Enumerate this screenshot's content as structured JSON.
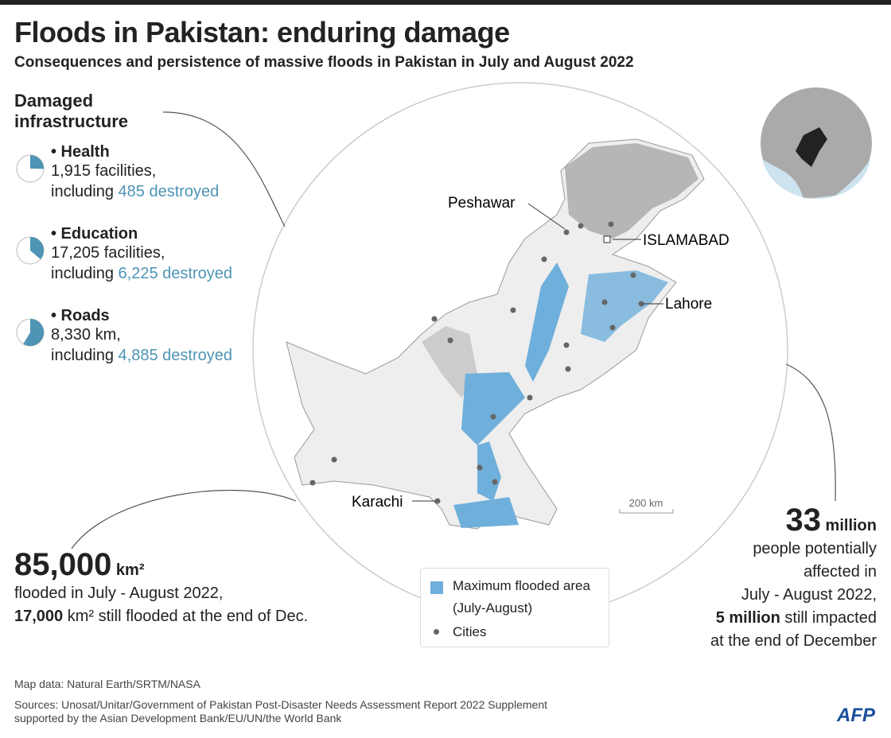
{
  "header": {
    "title": "Floods in Pakistan: enduring damage",
    "subtitle": "Consequences and persistence of massive floods in Pakistan in July and August 2022"
  },
  "infrastructure": {
    "title": "Damaged infrastructure",
    "items": [
      {
        "name": "• Health",
        "total": {
          "value": 1915,
          "label": "1,915"
        },
        "total_unit": "facilities,",
        "prefix": "including",
        "destroyed": {
          "value": 485,
          "label": "485"
        },
        "destroyed_unit": "destroyed"
      },
      {
        "name": "• Education",
        "total": {
          "value": 17205,
          "label": "17,205"
        },
        "total_unit": "facilities,",
        "prefix": "including",
        "destroyed": {
          "value": 6225,
          "label": "6,225"
        },
        "destroyed_unit": "destroyed"
      },
      {
        "name": "• Roads",
        "total": {
          "value": 8330,
          "label": "8,330"
        },
        "total_unit": "km,",
        "prefix": "including",
        "destroyed": {
          "value": 4885,
          "label": "4,885"
        },
        "destroyed_unit": "destroyed"
      }
    ]
  },
  "map": {
    "cities": [
      "Peshawar",
      "ISLAMABAD",
      "Lahore",
      "Karachi"
    ],
    "scale": "200 km",
    "legend": {
      "flooded": "Maximum flooded area",
      "flooded_period": "(July-August)",
      "cities": "Cities"
    }
  },
  "flooded_area": {
    "value": "85,000",
    "unit": "km²",
    "line1": "flooded in July - August 2022,",
    "still_value": "17,000",
    "still_unit": "km²",
    "still_text": "still flooded at the end of Dec."
  },
  "people": {
    "value": "33",
    "unit": "million",
    "line1": "people potentially",
    "line2": "affected in",
    "line3": "July - August 2022,",
    "still_value": "5 million",
    "still_text": "still impacted",
    "line5": "at the end of December"
  },
  "footer": {
    "map_data": "Map data: Natural Earth/SRTM/NASA",
    "sources1": "Sources: Unosat/Unitar/Government of Pakistan Post-Disaster Needs Assessment Report 2022 Supplement",
    "sources2": "supported by the Asian Development Bank/EU/UN/the World Bank",
    "logo": "AFP"
  }
}
